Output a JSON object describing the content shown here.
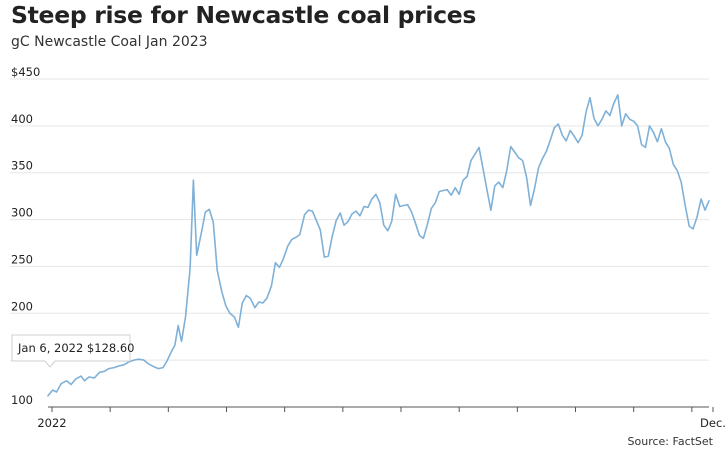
{
  "chart_data": {
    "type": "line",
    "title": "Steep rise for Newcastle coal prices",
    "subtitle": "gC Newcastle Coal Jan 2023",
    "source": "Source: FactSet",
    "y_unit_prefix": "$",
    "ylim": [
      100,
      450
    ],
    "yticks": [
      100,
      150,
      200,
      250,
      300,
      350,
      400,
      450
    ],
    "ytick_labels": [
      "100",
      "150",
      "200",
      "250",
      "300",
      "350",
      "400",
      "$450"
    ],
    "grid": true,
    "x_range": [
      0,
      100
    ],
    "x_ticks": [
      0,
      8.8,
      17.6,
      26.4,
      35.2,
      44,
      52.8,
      61.6,
      70.4,
      79.2,
      88,
      96.8,
      100
    ],
    "x_tick_labels": [
      {
        "pos": 0,
        "label": "2022"
      },
      {
        "pos": 100,
        "label": "Dec."
      }
    ],
    "tooltip": {
      "pos": 0,
      "label": "Jan 6, 2022 $128.60"
    },
    "series": [
      {
        "name": "gC Newcastle Coal Jan 2023",
        "color": "#7fb1d8",
        "points": [
          [
            0,
            112
          ],
          [
            0.7,
            118
          ],
          [
            1.3,
            116
          ],
          [
            2,
            125
          ],
          [
            2.8,
            128
          ],
          [
            3.5,
            124
          ],
          [
            4.2,
            130
          ],
          [
            5,
            133
          ],
          [
            5.5,
            128
          ],
          [
            6.2,
            132
          ],
          [
            7,
            131
          ],
          [
            7.8,
            137
          ],
          [
            8.5,
            138
          ],
          [
            9.2,
            141
          ],
          [
            10,
            142
          ],
          [
            10.8,
            144
          ],
          [
            11.5,
            145
          ],
          [
            12.2,
            148
          ],
          [
            13,
            150
          ],
          [
            13.7,
            151
          ],
          [
            14.5,
            150
          ],
          [
            15.2,
            146
          ],
          [
            16,
            143
          ],
          [
            16.7,
            141
          ],
          [
            17.4,
            142
          ],
          [
            18,
            149
          ],
          [
            18.6,
            158
          ],
          [
            19.2,
            166
          ],
          [
            19.7,
            187
          ],
          [
            20.2,
            170
          ],
          [
            20.8,
            196
          ],
          [
            21.5,
            248
          ],
          [
            22,
            342
          ],
          [
            22.5,
            262
          ],
          [
            23.2,
            286
          ],
          [
            23.8,
            308
          ],
          [
            24.4,
            311
          ],
          [
            25,
            297
          ],
          [
            25.6,
            246
          ],
          [
            26.3,
            223
          ],
          [
            26.9,
            208
          ],
          [
            27.5,
            200
          ],
          [
            28.2,
            196
          ],
          [
            28.8,
            185
          ],
          [
            29.4,
            211
          ],
          [
            30,
            219
          ],
          [
            30.6,
            216
          ],
          [
            31.3,
            206
          ],
          [
            31.9,
            212
          ],
          [
            32.5,
            211
          ],
          [
            33.1,
            216
          ],
          [
            33.8,
            229
          ],
          [
            34.4,
            254
          ],
          [
            35,
            249
          ],
          [
            35.6,
            258
          ],
          [
            36.3,
            272
          ],
          [
            36.9,
            279
          ],
          [
            37.5,
            281
          ],
          [
            38.1,
            284
          ],
          [
            38.8,
            305
          ],
          [
            39.4,
            310
          ],
          [
            40,
            309
          ],
          [
            40.6,
            299
          ],
          [
            41.2,
            289
          ],
          [
            41.8,
            260
          ],
          [
            42.4,
            261
          ],
          [
            43,
            282
          ],
          [
            43.6,
            299
          ],
          [
            44.2,
            307
          ],
          [
            44.8,
            294
          ],
          [
            45.4,
            298
          ],
          [
            46,
            306
          ],
          [
            46.6,
            309
          ],
          [
            47.2,
            304
          ],
          [
            47.8,
            314
          ],
          [
            48.4,
            313
          ],
          [
            49,
            322
          ],
          [
            49.6,
            327
          ],
          [
            50.2,
            318
          ],
          [
            50.8,
            294
          ],
          [
            51.4,
            288
          ],
          [
            52,
            298
          ],
          [
            52.6,
            327
          ],
          [
            53.2,
            314
          ],
          [
            53.8,
            315
          ],
          [
            54.4,
            316
          ],
          [
            55,
            308
          ],
          [
            55.6,
            296
          ],
          [
            56.2,
            283
          ],
          [
            56.8,
            280
          ],
          [
            57.4,
            295
          ],
          [
            58,
            312
          ],
          [
            58.6,
            318
          ],
          [
            59.2,
            330
          ],
          [
            59.8,
            331
          ],
          [
            60.4,
            332
          ],
          [
            61,
            326
          ],
          [
            61.6,
            334
          ],
          [
            62.2,
            327
          ],
          [
            62.8,
            342
          ],
          [
            63.4,
            346
          ],
          [
            64,
            363
          ],
          [
            64.6,
            370
          ],
          [
            65.2,
            377
          ],
          [
            65.8,
            355
          ],
          [
            66.4,
            332
          ],
          [
            67,
            310
          ],
          [
            67.6,
            336
          ],
          [
            68.2,
            340
          ],
          [
            68.8,
            334
          ],
          [
            69.4,
            352
          ],
          [
            70,
            378
          ],
          [
            70.6,
            372
          ],
          [
            71.2,
            366
          ],
          [
            71.8,
            363
          ],
          [
            72.4,
            345
          ],
          [
            73,
            315
          ],
          [
            73.6,
            333
          ],
          [
            74.2,
            355
          ],
          [
            74.8,
            365
          ],
          [
            75.4,
            373
          ],
          [
            76,
            385
          ],
          [
            76.6,
            398
          ],
          [
            77.2,
            402
          ],
          [
            77.8,
            390
          ],
          [
            78.4,
            384
          ],
          [
            79,
            395
          ],
          [
            79.6,
            389
          ],
          [
            80.2,
            382
          ],
          [
            80.8,
            390
          ],
          [
            81.4,
            415
          ],
          [
            82,
            430
          ],
          [
            82.6,
            408
          ],
          [
            83.2,
            400
          ],
          [
            83.8,
            407
          ],
          [
            84.4,
            416
          ],
          [
            85,
            411
          ],
          [
            85.6,
            424
          ],
          [
            86.2,
            433
          ],
          [
            86.8,
            400
          ],
          [
            87.4,
            413
          ],
          [
            88,
            407
          ],
          [
            88.6,
            405
          ],
          [
            89.2,
            400
          ],
          [
            89.8,
            380
          ],
          [
            90.4,
            377
          ],
          [
            91,
            400
          ],
          [
            91.6,
            393
          ],
          [
            92.2,
            383
          ],
          [
            92.8,
            397
          ],
          [
            93.4,
            383
          ],
          [
            94,
            376
          ],
          [
            94.6,
            359
          ],
          [
            95.2,
            352
          ],
          [
            95.8,
            340
          ],
          [
            96.4,
            315
          ],
          [
            97,
            293
          ],
          [
            97.6,
            290
          ],
          [
            98.2,
            303
          ],
          [
            98.8,
            322
          ],
          [
            99.4,
            310
          ],
          [
            100,
            320
          ]
        ]
      }
    ]
  }
}
